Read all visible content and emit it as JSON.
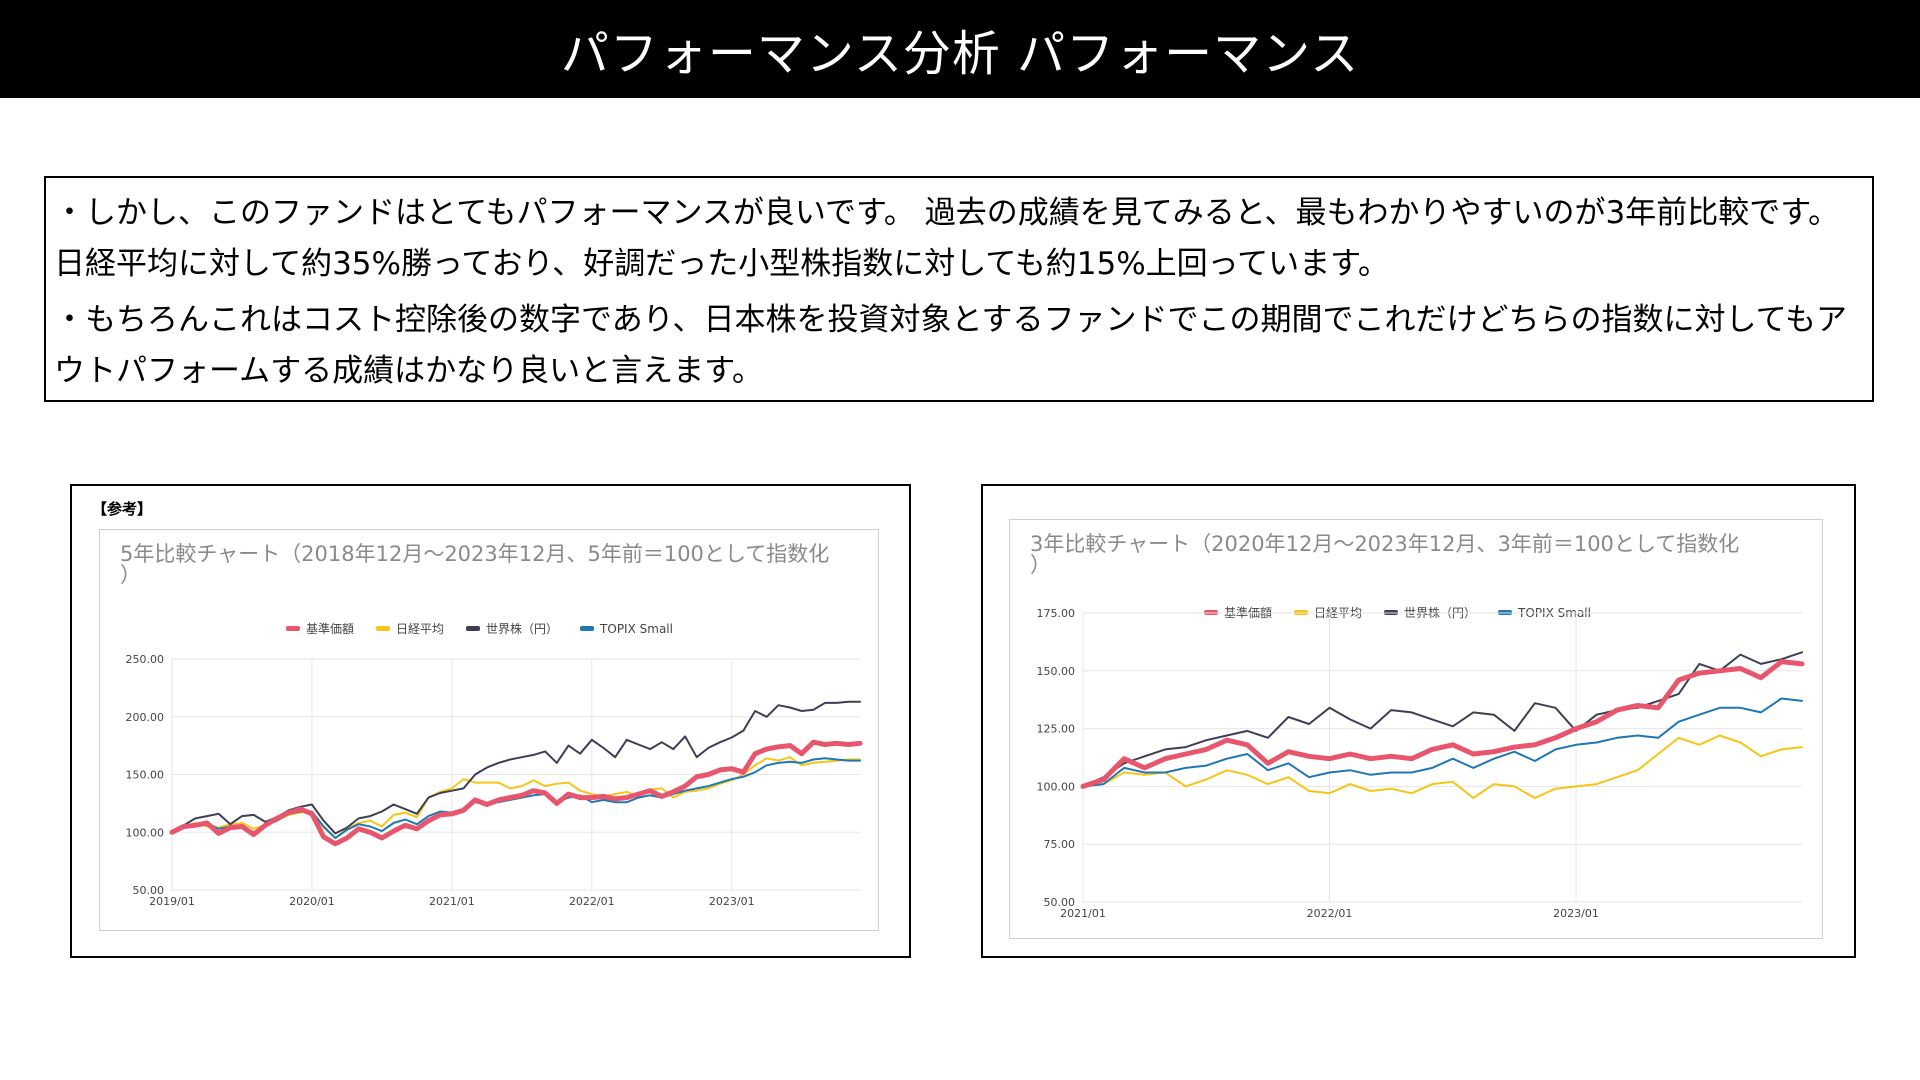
{
  "header": {
    "title": "パフォーマンス分析 パフォーマンス"
  },
  "body_text": {
    "para1": "・しかし、このファンドはとてもパフォーマンスが良いです。 過去の成績を見てみると、最もわかりやすいのが3年前比較です。日経平均に対して約35%勝っており、好調だった小型株指数に対しても約15%上回っています。",
    "para2": "・もちろんこれはコスト控除後の数字であり、日本株を投資対象とするファンドでこの期間でこれだけどちらの指数に対してもアウトパフォームする成績はかなり良いと言えます。"
  },
  "panel1": {
    "ref_label": "【参考】"
  },
  "legend_labels": [
    "基準価額",
    "日経平均",
    "世界株（円）",
    "TOPIX Small"
  ],
  "colors": {
    "fund": "#e8566e",
    "nikkei": "#f5c518",
    "world": "#3d3f55",
    "topix": "#1f78b4",
    "grid": "#e6e6e6"
  },
  "chart_data": [
    {
      "type": "line",
      "title": "5年比較チャート（2018年12月～2023年12月、5年前＝100として指数化\n）",
      "xlabel": "",
      "ylabel": "",
      "ylim": [
        50,
        250
      ],
      "yticks": [
        "250.00",
        "200.00",
        "150.00",
        "100.00",
        "50.00"
      ],
      "ytick_values": [
        250,
        200,
        150,
        100,
        50
      ],
      "xticks": [
        "2019/01",
        "2020/01",
        "2021/01",
        "2022/01",
        "2023/01"
      ],
      "xtick_months": [
        0,
        12,
        24,
        36,
        48
      ],
      "x_months": [
        0,
        1,
        2,
        3,
        4,
        5,
        6,
        7,
        8,
        9,
        10,
        11,
        12,
        13,
        14,
        15,
        16,
        17,
        18,
        19,
        20,
        21,
        22,
        23,
        24,
        25,
        26,
        27,
        28,
        29,
        30,
        31,
        32,
        33,
        34,
        35,
        36,
        37,
        38,
        39,
        40,
        41,
        42,
        43,
        44,
        45,
        46,
        47,
        48,
        49,
        50,
        51,
        52,
        53,
        54,
        55,
        56,
        57,
        58,
        59
      ],
      "grid": true,
      "legend_position": "top-center",
      "series": [
        {
          "name": "基準価額",
          "key": "fund",
          "width": 5,
          "values": [
            100,
            105,
            106,
            108,
            99,
            104,
            105,
            98,
            106,
            112,
            117,
            120,
            116,
            96,
            90,
            95,
            103,
            100,
            95,
            101,
            106,
            103,
            110,
            115,
            116,
            119,
            128,
            124,
            128,
            130,
            132,
            136,
            134,
            125,
            133,
            130,
            130,
            131,
            129,
            130,
            133,
            136,
            131,
            135,
            140,
            148,
            150,
            154,
            155,
            152,
            168,
            172,
            174,
            175,
            168,
            178,
            176,
            177,
            176,
            177
          ]
        },
        {
          "name": "日経平均",
          "key": "nikkei",
          "width": 2,
          "values": [
            100,
            104,
            108,
            105,
            104,
            107,
            108,
            103,
            106,
            110,
            115,
            117,
            118,
            104,
            95,
            103,
            108,
            110,
            105,
            115,
            117,
            113,
            130,
            135,
            138,
            146,
            143,
            143,
            143,
            138,
            140,
            145,
            140,
            142,
            143,
            136,
            133,
            131,
            133,
            135,
            130,
            137,
            138,
            130,
            135,
            136,
            138,
            142,
            145,
            150,
            158,
            164,
            162,
            165,
            158,
            160,
            161,
            162,
            163,
            163
          ]
        },
        {
          "name": "世界株（円）",
          "key": "world",
          "width": 2,
          "values": [
            100,
            106,
            112,
            114,
            116,
            107,
            114,
            115,
            109,
            113,
            119,
            122,
            124,
            110,
            99,
            104,
            112,
            114,
            118,
            124,
            120,
            116,
            130,
            134,
            136,
            138,
            150,
            156,
            160,
            163,
            165,
            167,
            170,
            160,
            175,
            168,
            180,
            173,
            165,
            180,
            176,
            172,
            178,
            172,
            183,
            165,
            173,
            178,
            182,
            188,
            205,
            200,
            210,
            208,
            205,
            206,
            212,
            212,
            213,
            213
          ]
        },
        {
          "name": "TOPIX Small",
          "key": "topix",
          "width": 2,
          "values": [
            100,
            104,
            107,
            108,
            103,
            105,
            106,
            100,
            106,
            110,
            116,
            118,
            118,
            105,
            95,
            102,
            107,
            105,
            101,
            108,
            111,
            107,
            114,
            118,
            117,
            120,
            126,
            124,
            126,
            128,
            130,
            132,
            133,
            126,
            130,
            132,
            126,
            128,
            126,
            126,
            130,
            132,
            130,
            133,
            136,
            138,
            140,
            143,
            146,
            148,
            152,
            158,
            160,
            161,
            160,
            163,
            164,
            163,
            162,
            162
          ]
        }
      ]
    },
    {
      "type": "line",
      "title": "3年比較チャート（2020年12月～2023年12月、3年前＝100として指数化\n）",
      "xlabel": "",
      "ylabel": "",
      "ylim": [
        50,
        175
      ],
      "yticks": [
        "175.00",
        "150.00",
        "125.00",
        "100.00",
        "75.00",
        "50.00"
      ],
      "ytick_values": [
        175,
        150,
        125,
        100,
        75,
        50
      ],
      "xticks": [
        "2021/01",
        "2022/01",
        "2023/01"
      ],
      "xtick_months": [
        0,
        12,
        24
      ],
      "x_months": [
        0,
        1,
        2,
        3,
        4,
        5,
        6,
        7,
        8,
        9,
        10,
        11,
        12,
        13,
        14,
        15,
        16,
        17,
        18,
        19,
        20,
        21,
        22,
        23,
        24,
        25,
        26,
        27,
        28,
        29,
        30,
        31,
        32,
        33,
        34,
        35
      ],
      "grid": true,
      "legend_position": "top-center",
      "series": [
        {
          "name": "基準価額",
          "key": "fund",
          "width": 5,
          "values": [
            100,
            103,
            112,
            108,
            112,
            114,
            116,
            120,
            118,
            110,
            115,
            113,
            112,
            114,
            112,
            113,
            112,
            116,
            118,
            114,
            115,
            117,
            118,
            121,
            125,
            128,
            133,
            135,
            134,
            146,
            149,
            150,
            151,
            147,
            154,
            153
          ]
        },
        {
          "name": "日経平均",
          "key": "nikkei",
          "width": 2,
          "values": [
            100,
            101,
            106,
            105,
            106,
            100,
            103,
            107,
            105,
            101,
            104,
            98,
            97,
            101,
            98,
            99,
            97,
            101,
            102,
            95,
            101,
            100,
            95,
            99,
            100,
            101,
            104,
            107,
            114,
            121,
            118,
            122,
            119,
            113,
            116,
            117
          ]
        },
        {
          "name": "世界株（円）",
          "key": "world",
          "width": 2,
          "values": [
            100,
            104,
            110,
            113,
            116,
            117,
            120,
            122,
            124,
            121,
            130,
            127,
            134,
            129,
            125,
            133,
            132,
            129,
            126,
            132,
            131,
            124,
            136,
            134,
            124,
            131,
            133,
            134,
            137,
            140,
            153,
            150,
            157,
            153,
            155,
            158
          ]
        },
        {
          "name": "TOPIX Small",
          "key": "topix",
          "width": 2,
          "values": [
            100,
            101,
            108,
            106,
            106,
            108,
            109,
            112,
            114,
            107,
            110,
            104,
            106,
            107,
            105,
            106,
            106,
            108,
            112,
            108,
            112,
            115,
            111,
            116,
            118,
            119,
            121,
            122,
            121,
            128,
            131,
            134,
            134,
            132,
            138,
            137
          ]
        }
      ]
    }
  ]
}
